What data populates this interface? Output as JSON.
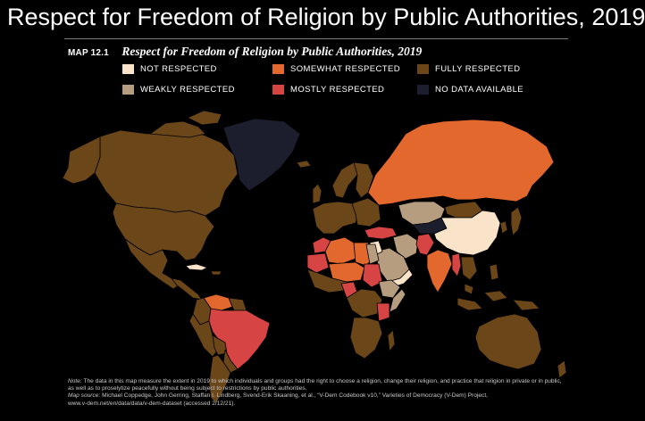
{
  "slide": {
    "title": "Respect for Freedom of Religion by Public Authorities, 2019"
  },
  "map": {
    "number": "MAP 12.1",
    "title": "Respect for Freedom of Religion by Public Authorities, 2019",
    "legend": [
      {
        "label": "NOT RESPECTED",
        "color": "#f9e3c9"
      },
      {
        "label": "SOMEWHAT RESPECTED",
        "color": "#e2682d"
      },
      {
        "label": "FULLY RESPECTED",
        "color": "#6a4619"
      },
      {
        "label": "WEAKLY RESPECTED",
        "color": "#b79d7f"
      },
      {
        "label": "MOSTLY RESPECTED",
        "color": "#d64543"
      },
      {
        "label": "NO DATA AVAILABLE",
        "color": "#1c1e2e"
      }
    ]
  },
  "note": {
    "note_label": "Note:",
    "note_text": "The data in this map measure the extent in 2019 to which individuals and groups had the right to choose a religion, change their religion, and practice that religion in private or in public, as well as to proselytize peacefully without being subject to restrictions by public authorities.",
    "source_label": "Map source:",
    "source_text": "Michael Coppedge, John Gerring, Staffan I. Lindberg, Svend-Erik Skaaning, et al., “V-Dem Codebook v10,” Varieties of Democracy (V-Dem) Project,",
    "source_url": "www.v-dem.net/en/data/data/v-dem-dataset (accessed 2/12/21)."
  }
}
